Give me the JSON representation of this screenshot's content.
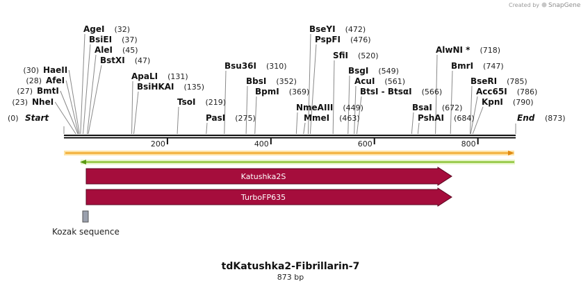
{
  "credit": {
    "prefix": "Created by",
    "brand": "SnapGene"
  },
  "sequence": {
    "length": 873
  },
  "ruler": {
    "ticks": [
      200,
      400,
      600,
      800
    ]
  },
  "end_labels": {
    "start": {
      "name": "Start",
      "pos": "(0)",
      "site": 0
    },
    "end": {
      "name": "End",
      "pos": "(873)",
      "site": 873
    }
  },
  "sites": [
    {
      "name": "NheI",
      "pos": "(23)",
      "site": 23
    },
    {
      "name": "BmtI",
      "pos": "(27)",
      "site": 27
    },
    {
      "name": "AfeI",
      "pos": "(28)",
      "site": 28
    },
    {
      "name": "HaeII",
      "pos": "(30)",
      "site": 30
    },
    {
      "name": "AgeI",
      "pos": "(32)",
      "site": 32
    },
    {
      "name": "BsiEI",
      "pos": "(37)",
      "site": 37
    },
    {
      "name": "AleI",
      "pos": "(45)",
      "site": 45
    },
    {
      "name": "BstXI",
      "pos": "(47)",
      "site": 47
    },
    {
      "name": "ApaLI",
      "pos": "(131)",
      "site": 131
    },
    {
      "name": "BsiHKAI",
      "pos": "(135)",
      "site": 135
    },
    {
      "name": "TsoI",
      "pos": "(219)",
      "site": 219
    },
    {
      "name": "PasI",
      "pos": "(275)",
      "site": 275
    },
    {
      "name": "Bsu36I",
      "pos": "(310)",
      "site": 310
    },
    {
      "name": "BbsI",
      "pos": "(352)",
      "site": 352
    },
    {
      "name": "BpmI",
      "pos": "(369)",
      "site": 369
    },
    {
      "name": "NmeAIII",
      "pos": "(449)",
      "site": 449
    },
    {
      "name": "MmeI",
      "pos": "(463)",
      "site": 463
    },
    {
      "name": "BseYI",
      "pos": "(472)",
      "site": 472
    },
    {
      "name": "PspFI",
      "pos": "(476)",
      "site": 476
    },
    {
      "name": "SfiI",
      "pos": "(520)",
      "site": 520
    },
    {
      "name": "BsgI",
      "pos": "(549)",
      "site": 549
    },
    {
      "name": "AcuI",
      "pos": "(561)",
      "site": 561
    },
    {
      "name": "BtsI - BtsαI",
      "pos": "(566)",
      "site": 566
    },
    {
      "name": "BsaI",
      "pos": "(672)",
      "site": 672
    },
    {
      "name": "PshAI",
      "pos": "(684)",
      "site": 684
    },
    {
      "name": "AlwNI *",
      "pos": "(718)",
      "site": 718
    },
    {
      "name": "BmrI",
      "pos": "(747)",
      "site": 747
    },
    {
      "name": "BseRI",
      "pos": "(785)",
      "site": 785
    },
    {
      "name": "Acc65I",
      "pos": "(786)",
      "site": 786
    },
    {
      "name": "KpnI",
      "pos": "(790)",
      "site": 790
    }
  ],
  "features": [
    {
      "name": "Katushka2S",
      "color": "#a50d3c"
    },
    {
      "name": "TurboFP635",
      "color": "#a50d3c"
    }
  ],
  "kozak": {
    "label": "Kozak sequence",
    "color": "#9aa0ad"
  },
  "title": {
    "name": "tdKatushka2-Fibrillarin-7",
    "subtitle": "873 bp"
  },
  "colors": {
    "forward_strand": "#f0a21d",
    "reverse_strand": "#7ebc1f",
    "backbone": "#111111"
  }
}
